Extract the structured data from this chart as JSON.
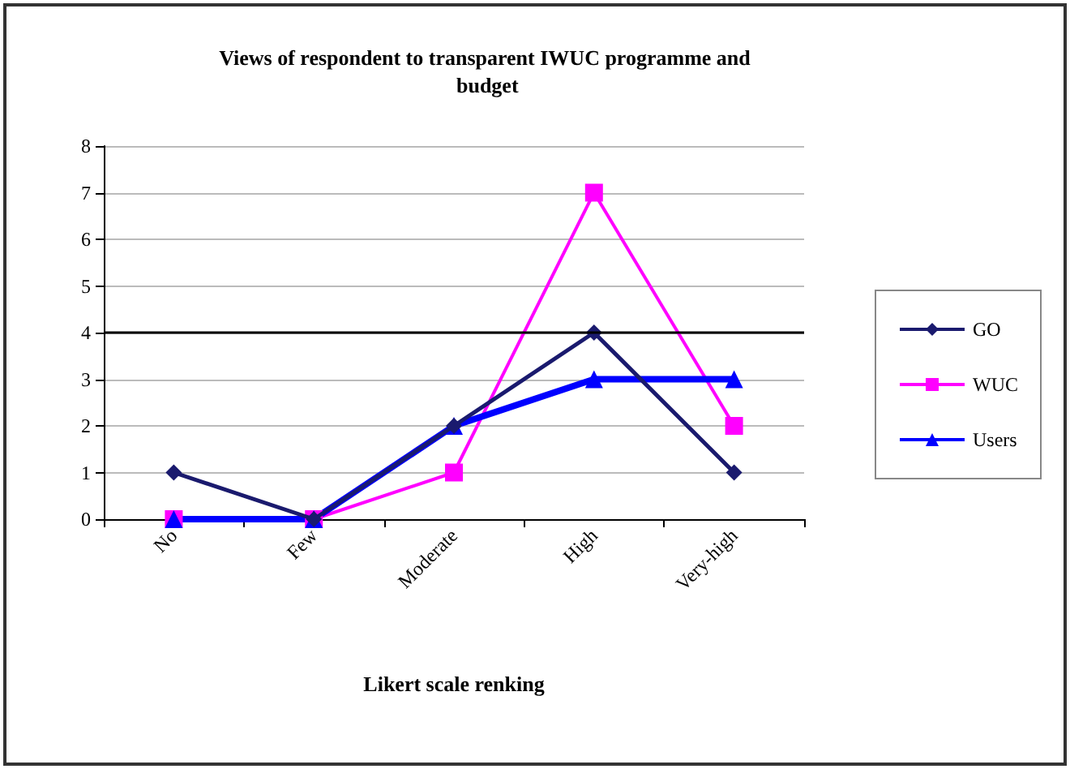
{
  "chart_data": {
    "type": "line",
    "title": "Views of respondent to transparent IWUC programme and budget",
    "xlabel": "Likert scale renking",
    "categories": [
      "No",
      "Few",
      "Moderate",
      "High",
      "Very-high"
    ],
    "series": [
      {
        "name": "GO",
        "color": "#1a1a6e",
        "marker": "diamond",
        "values": [
          1,
          0,
          2,
          4,
          1
        ]
      },
      {
        "name": "WUC",
        "color": "#ff00ff",
        "marker": "square",
        "values": [
          0,
          0,
          1,
          7,
          2
        ]
      },
      {
        "name": "Users",
        "color": "#0000ff",
        "marker": "triangle",
        "values": [
          0,
          0,
          2,
          3,
          3
        ]
      }
    ],
    "ylim": [
      0,
      8
    ],
    "yticks": [
      0,
      1,
      2,
      3,
      4,
      5,
      6,
      7,
      8
    ],
    "grid": "y",
    "legend": "right",
    "ref_lines": [
      {
        "axis": "y",
        "value": 4,
        "color": "#000000"
      }
    ]
  }
}
